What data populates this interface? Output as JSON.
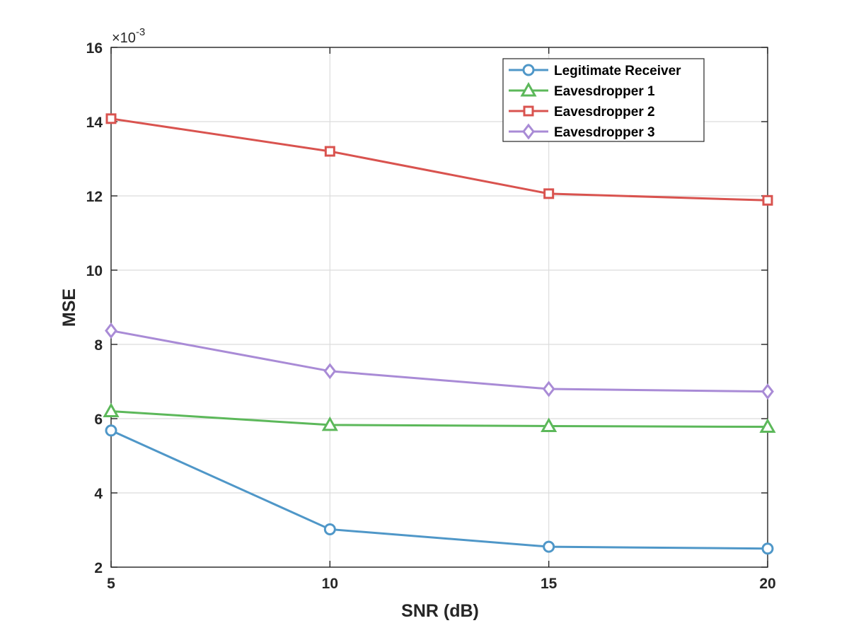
{
  "chart_data": {
    "type": "line",
    "title": "",
    "xlabel": "SNR (dB)",
    "ylabel": "MSE",
    "y_multiplier_base": "×10",
    "y_multiplier_exp": "-3",
    "xlim": [
      5,
      20
    ],
    "ylim": [
      2,
      16
    ],
    "x": [
      5,
      10,
      15,
      20
    ],
    "x_ticks": [
      5,
      10,
      15,
      20
    ],
    "y_ticks": [
      2,
      4,
      6,
      8,
      10,
      12,
      14,
      16
    ],
    "grid": true,
    "legend_position": "top-right",
    "series": [
      {
        "name": "Legitimate Receiver",
        "values": [
          5.68,
          3.02,
          2.55,
          2.5
        ],
        "color": "#4f97c8",
        "marker": "circle"
      },
      {
        "name": "Eavesdropper 1",
        "values": [
          6.2,
          5.83,
          5.8,
          5.78
        ],
        "color": "#5cb85a",
        "marker": "triangle"
      },
      {
        "name": "Eavesdropper 2",
        "values": [
          14.08,
          13.2,
          12.06,
          11.88
        ],
        "color": "#d9534f",
        "marker": "square"
      },
      {
        "name": "Eavesdropper 3",
        "values": [
          8.37,
          7.28,
          6.8,
          6.73
        ],
        "color": "#a98bd6",
        "marker": "diamond"
      }
    ]
  }
}
